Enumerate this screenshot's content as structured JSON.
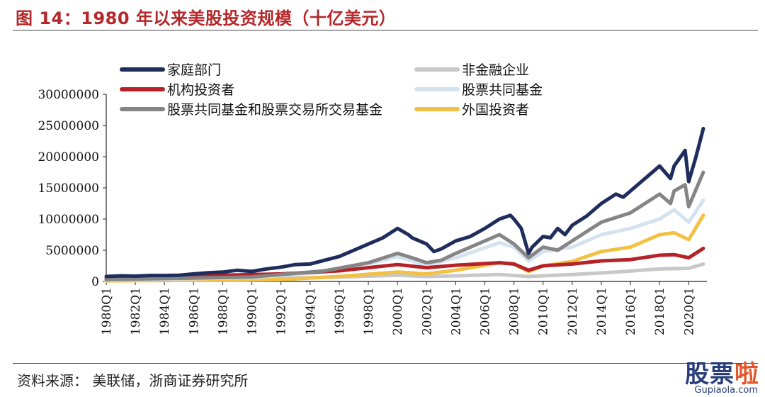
{
  "title": "图 14：1980 年以来美股投资规模（十亿美元）",
  "source": "资料来源： 美联储，浙商证券研究所",
  "watermark": {
    "brand_main": "股票",
    "brand_accent": "啦",
    "domain": "Gupiaola.com"
  },
  "chart_data": {
    "type": "line",
    "title": "图 14：1980 年以来美股投资规模（十亿美元）",
    "xlabel": "",
    "ylabel": "",
    "ylim": [
      0,
      30000000
    ],
    "yticks": [
      0,
      5000000,
      10000000,
      15000000,
      20000000,
      25000000,
      30000000
    ],
    "yticklabels": [
      "0",
      "5000000",
      "10000000",
      "15000000",
      "20000000",
      "25000000",
      "30000000"
    ],
    "xlim": [
      1980.0,
      2021.25
    ],
    "xticklabels": [
      "1980Q1",
      "1982Q1",
      "1984Q1",
      "1986Q1",
      "1988Q1",
      "1990Q1",
      "1992Q1",
      "1994Q1",
      "1996Q1",
      "1998Q1",
      "2000Q1",
      "2002Q1",
      "2004Q1",
      "2006Q1",
      "2008Q1",
      "2010Q1",
      "2012Q1",
      "2014Q1",
      "2016Q1",
      "2018Q1",
      "2020Q1"
    ],
    "legend_position": "top",
    "grid": false,
    "series": [
      {
        "name": "家庭部门",
        "color": "#1f2d5c",
        "points": [
          [
            1980,
            800000
          ],
          [
            1981,
            900000
          ],
          [
            1982,
            850000
          ],
          [
            1983,
            950000
          ],
          [
            1984,
            950000
          ],
          [
            1985,
            1000000
          ],
          [
            1986,
            1200000
          ],
          [
            1987,
            1400000
          ],
          [
            1988,
            1500000
          ],
          [
            1989,
            1800000
          ],
          [
            1990,
            1600000
          ],
          [
            1991,
            2000000
          ],
          [
            1992,
            2300000
          ],
          [
            1993,
            2700000
          ],
          [
            1994,
            2800000
          ],
          [
            1995,
            3400000
          ],
          [
            1996,
            4000000
          ],
          [
            1997,
            5000000
          ],
          [
            1998,
            6000000
          ],
          [
            1999,
            7000000
          ],
          [
            2000,
            8500000
          ],
          [
            2000.75,
            7500000
          ],
          [
            2001,
            7000000
          ],
          [
            2001.5,
            6500000
          ],
          [
            2002,
            6000000
          ],
          [
            2002.5,
            4800000
          ],
          [
            2003,
            5200000
          ],
          [
            2004,
            6500000
          ],
          [
            2005,
            7200000
          ],
          [
            2006,
            8500000
          ],
          [
            2007,
            10000000
          ],
          [
            2007.75,
            10600000
          ],
          [
            2008,
            10000000
          ],
          [
            2008.5,
            8500000
          ],
          [
            2009,
            4500000
          ],
          [
            2009.25,
            5500000
          ],
          [
            2010,
            7200000
          ],
          [
            2010.5,
            7000000
          ],
          [
            2011,
            8500000
          ],
          [
            2011.5,
            7500000
          ],
          [
            2012,
            9000000
          ],
          [
            2013,
            10500000
          ],
          [
            2014,
            12500000
          ],
          [
            2015,
            14000000
          ],
          [
            2015.5,
            13500000
          ],
          [
            2016,
            14500000
          ],
          [
            2017,
            16500000
          ],
          [
            2018,
            18500000
          ],
          [
            2018.75,
            16500000
          ],
          [
            2019,
            18500000
          ],
          [
            2019.75,
            21000000
          ],
          [
            2020,
            16000000
          ],
          [
            2020.5,
            20000000
          ],
          [
            2021,
            24500000
          ]
        ]
      },
      {
        "name": "非金融企业",
        "color": "#c8c8c8",
        "points": [
          [
            1980,
            300000
          ],
          [
            1984,
            350000
          ],
          [
            1988,
            400000
          ],
          [
            1992,
            500000
          ],
          [
            1996,
            700000
          ],
          [
            2000,
            1000000
          ],
          [
            2002,
            800000
          ],
          [
            2004,
            900000
          ],
          [
            2007,
            1100000
          ],
          [
            2009,
            800000
          ],
          [
            2012,
            1100000
          ],
          [
            2015,
            1500000
          ],
          [
            2018,
            2000000
          ],
          [
            2020,
            2100000
          ],
          [
            2021,
            2800000
          ]
        ]
      },
      {
        "name": "机构投资者",
        "color": "#b52228",
        "points": [
          [
            1980,
            500000
          ],
          [
            1984,
            700000
          ],
          [
            1988,
            1000000
          ],
          [
            1992,
            1200000
          ],
          [
            1996,
            1700000
          ],
          [
            2000,
            2700000
          ],
          [
            2002,
            2200000
          ],
          [
            2004,
            2600000
          ],
          [
            2007,
            3000000
          ],
          [
            2008,
            2800000
          ],
          [
            2009,
            1800000
          ],
          [
            2010,
            2500000
          ],
          [
            2012,
            2800000
          ],
          [
            2014,
            3300000
          ],
          [
            2016,
            3500000
          ],
          [
            2018,
            4200000
          ],
          [
            2019,
            4300000
          ],
          [
            2020,
            3800000
          ],
          [
            2021,
            5300000
          ]
        ]
      },
      {
        "name": "股票共同基金",
        "color": "#d5e2f0",
        "points": [
          [
            1980,
            200000
          ],
          [
            1990,
            600000
          ],
          [
            1995,
            1500000
          ],
          [
            1998,
            2800000
          ],
          [
            2000,
            4000000
          ],
          [
            2002,
            2600000
          ],
          [
            2004,
            3800000
          ],
          [
            2007,
            6200000
          ],
          [
            2008,
            5500000
          ],
          [
            2009,
            3300000
          ],
          [
            2010,
            4800000
          ],
          [
            2012,
            5500000
          ],
          [
            2014,
            7500000
          ],
          [
            2016,
            8500000
          ],
          [
            2018,
            10000000
          ],
          [
            2019,
            11500000
          ],
          [
            2020,
            9500000
          ],
          [
            2021,
            13000000
          ]
        ]
      },
      {
        "name": "股票共同基金和股票交易所交易基金",
        "color": "#858585",
        "points": [
          [
            1980,
            300000
          ],
          [
            1990,
            700000
          ],
          [
            1995,
            1700000
          ],
          [
            1998,
            3000000
          ],
          [
            2000,
            4500000
          ],
          [
            2001,
            3800000
          ],
          [
            2002,
            3000000
          ],
          [
            2003,
            3400000
          ],
          [
            2004,
            4500000
          ],
          [
            2007,
            7500000
          ],
          [
            2008,
            6000000
          ],
          [
            2009,
            3800000
          ],
          [
            2010,
            5500000
          ],
          [
            2011,
            5000000
          ],
          [
            2012,
            6500000
          ],
          [
            2014,
            9500000
          ],
          [
            2016,
            11000000
          ],
          [
            2018,
            14000000
          ],
          [
            2018.75,
            12500000
          ],
          [
            2019,
            14500000
          ],
          [
            2019.75,
            15500000
          ],
          [
            2020,
            12000000
          ],
          [
            2021,
            17500000
          ]
        ]
      },
      {
        "name": "外国投资者",
        "color": "#f2c144",
        "points": [
          [
            1980,
            100000
          ],
          [
            1988,
            200000
          ],
          [
            1992,
            300000
          ],
          [
            1996,
            800000
          ],
          [
            2000,
            1500000
          ],
          [
            2002,
            1200000
          ],
          [
            2004,
            1800000
          ],
          [
            2007,
            3000000
          ],
          [
            2008,
            2800000
          ],
          [
            2009,
            1600000
          ],
          [
            2010,
            2500000
          ],
          [
            2012,
            3200000
          ],
          [
            2014,
            4800000
          ],
          [
            2016,
            5500000
          ],
          [
            2018,
            7500000
          ],
          [
            2019,
            7800000
          ],
          [
            2020,
            6700000
          ],
          [
            2021,
            10600000
          ]
        ]
      }
    ]
  }
}
